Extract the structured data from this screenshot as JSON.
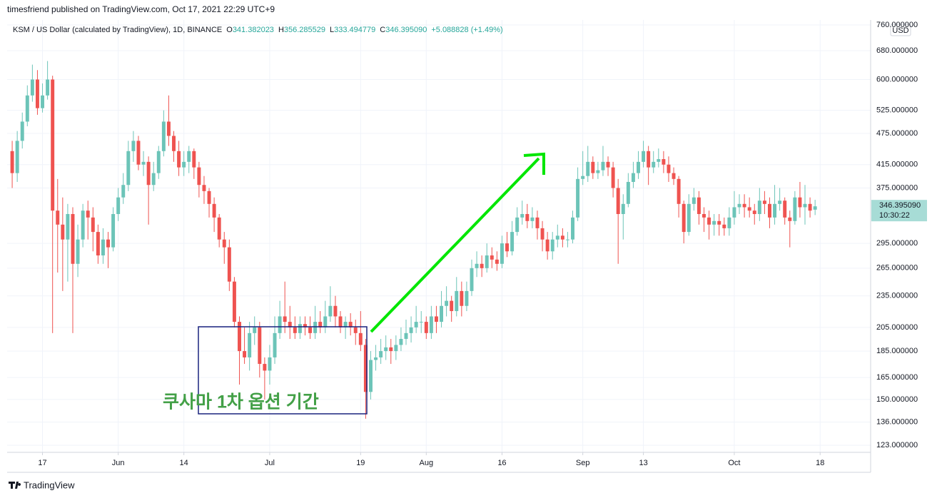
{
  "chart_data": {
    "type": "candlestick",
    "publisher": "timesfriend published on TradingView.com, Oct 17, 2021 22:29 UTC+9",
    "title": "KSM / US Dollar (calculated by TradingView), 1D, BINANCE",
    "legend": {
      "o_label": "O",
      "o_value": "341.382023",
      "h_label": "H",
      "h_value": "356.285529",
      "l_label": "L",
      "l_value": "333.494779",
      "c_label": "C",
      "c_value": "346.395090",
      "change": "+5.088828 (+1.49%)"
    },
    "currency": "USD",
    "last_price_label": "346.395090",
    "countdown": "10:30:22",
    "annotation": "쿠사마 1차 옵션 기간",
    "brand": "TradingView",
    "up_color": "#6cc4b8",
    "down_color": "#ef5350",
    "log_scale": true,
    "grid": true,
    "ylim": [
      119.3,
      776.6
    ],
    "yticks": [
      {
        "value": 123,
        "label": "123.000000"
      },
      {
        "value": 136,
        "label": "136.000000"
      },
      {
        "value": 150,
        "label": "150.000000"
      },
      {
        "value": 165,
        "label": "165.000000"
      },
      {
        "value": 185,
        "label": "185.000000"
      },
      {
        "value": 205,
        "label": "205.000000"
      },
      {
        "value": 235,
        "label": "235.000000"
      },
      {
        "value": 265,
        "label": "265.000000"
      },
      {
        "value": 295,
        "label": "295.000000"
      },
      {
        "value": 375,
        "label": "375.000000"
      },
      {
        "value": 415,
        "label": "415.000000"
      },
      {
        "value": 475,
        "label": "475.000000"
      },
      {
        "value": 525,
        "label": "525.000000"
      },
      {
        "value": 600,
        "label": "600.000000"
      },
      {
        "value": 680,
        "label": "680.000000"
      },
      {
        "value": 760,
        "label": "760.000000"
      }
    ],
    "xlim": [
      "2021-05-10",
      "2021-10-28"
    ],
    "xticks": [
      {
        "value": "2021-05-17",
        "label": "17"
      },
      {
        "value": "2021-06-01",
        "label": "Jun"
      },
      {
        "value": "2021-06-14",
        "label": "14"
      },
      {
        "value": "2021-07-01",
        "label": "Jul"
      },
      {
        "value": "2021-07-19",
        "label": "19"
      },
      {
        "value": "2021-08-01",
        "label": "Aug"
      },
      {
        "value": "2021-08-16",
        "label": "16"
      },
      {
        "value": "2021-09-01",
        "label": "Sep"
      },
      {
        "value": "2021-09-13",
        "label": "13"
      },
      {
        "value": "2021-10-01",
        "label": "Oct"
      },
      {
        "value": "2021-10-18",
        "label": "18"
      }
    ],
    "x": [
      "2021-05-11",
      "2021-05-12",
      "2021-05-13",
      "2021-05-14",
      "2021-05-15",
      "2021-05-16",
      "2021-05-17",
      "2021-05-18",
      "2021-05-19",
      "2021-05-20",
      "2021-05-21",
      "2021-05-22",
      "2021-05-23",
      "2021-05-24",
      "2021-05-25",
      "2021-05-26",
      "2021-05-27",
      "2021-05-28",
      "2021-05-29",
      "2021-05-30",
      "2021-05-31",
      "2021-06-01",
      "2021-06-02",
      "2021-06-03",
      "2021-06-04",
      "2021-06-05",
      "2021-06-06",
      "2021-06-07",
      "2021-06-08",
      "2021-06-09",
      "2021-06-10",
      "2021-06-11",
      "2021-06-12",
      "2021-06-13",
      "2021-06-14",
      "2021-06-15",
      "2021-06-16",
      "2021-06-17",
      "2021-06-18",
      "2021-06-19",
      "2021-06-20",
      "2021-06-21",
      "2021-06-22",
      "2021-06-23",
      "2021-06-24",
      "2021-06-25",
      "2021-06-26",
      "2021-06-27",
      "2021-06-28",
      "2021-06-29",
      "2021-06-30",
      "2021-07-01",
      "2021-07-02",
      "2021-07-03",
      "2021-07-04",
      "2021-07-05",
      "2021-07-06",
      "2021-07-07",
      "2021-07-08",
      "2021-07-09",
      "2021-07-10",
      "2021-07-11",
      "2021-07-12",
      "2021-07-13",
      "2021-07-14",
      "2021-07-15",
      "2021-07-16",
      "2021-07-17",
      "2021-07-18",
      "2021-07-19",
      "2021-07-20",
      "2021-07-21",
      "2021-07-22",
      "2021-07-23",
      "2021-07-24",
      "2021-07-25",
      "2021-07-26",
      "2021-07-27",
      "2021-07-28",
      "2021-07-29",
      "2021-07-30",
      "2021-07-31",
      "2021-08-01",
      "2021-08-02",
      "2021-08-03",
      "2021-08-04",
      "2021-08-05",
      "2021-08-06",
      "2021-08-07",
      "2021-08-08",
      "2021-08-09",
      "2021-08-10",
      "2021-08-11",
      "2021-08-12",
      "2021-08-13",
      "2021-08-14",
      "2021-08-15",
      "2021-08-16",
      "2021-08-17",
      "2021-08-18",
      "2021-08-19",
      "2021-08-20",
      "2021-08-21",
      "2021-08-22",
      "2021-08-23",
      "2021-08-24",
      "2021-08-25",
      "2021-08-26",
      "2021-08-27",
      "2021-08-28",
      "2021-08-29",
      "2021-08-30",
      "2021-08-31",
      "2021-09-01",
      "2021-09-02",
      "2021-09-03",
      "2021-09-04",
      "2021-09-05",
      "2021-09-06",
      "2021-09-07",
      "2021-09-08",
      "2021-09-09",
      "2021-09-10",
      "2021-09-11",
      "2021-09-12",
      "2021-09-13",
      "2021-09-14",
      "2021-09-15",
      "2021-09-16",
      "2021-09-17",
      "2021-09-18",
      "2021-09-19",
      "2021-09-20",
      "2021-09-21",
      "2021-09-22",
      "2021-09-23",
      "2021-09-24",
      "2021-09-25",
      "2021-09-26",
      "2021-09-27",
      "2021-09-28",
      "2021-09-29",
      "2021-09-30",
      "2021-10-01",
      "2021-10-02",
      "2021-10-03",
      "2021-10-04",
      "2021-10-05",
      "2021-10-06",
      "2021-10-07",
      "2021-10-08",
      "2021-10-09",
      "2021-10-10",
      "2021-10-11",
      "2021-10-12",
      "2021-10-13",
      "2021-10-14",
      "2021-10-15",
      "2021-10-16",
      "2021-10-17"
    ],
    "open": [
      440,
      400,
      460,
      500,
      560,
      600,
      530,
      560,
      600,
      340,
      320,
      300,
      335,
      270,
      300,
      340,
      330,
      310,
      280,
      300,
      290,
      335,
      360,
      380,
      440,
      460,
      415,
      420,
      380,
      400,
      440,
      500,
      470,
      440,
      410,
      420,
      440,
      410,
      380,
      370,
      350,
      330,
      300,
      290,
      250,
      210,
      185,
      180,
      200,
      205,
      175,
      170,
      180,
      200,
      215,
      210,
      205,
      200,
      208,
      205,
      200,
      210,
      205,
      215,
      225,
      215,
      205,
      210,
      205,
      200,
      190,
      155,
      178,
      180,
      185,
      188,
      185,
      190,
      195,
      200,
      205,
      210,
      210,
      200,
      215,
      210,
      225,
      230,
      220,
      240,
      225,
      240,
      265,
      270,
      265,
      280,
      275,
      270,
      295,
      285,
      310,
      330,
      335,
      325,
      330,
      315,
      300,
      285,
      300,
      305,
      300,
      300,
      330,
      390,
      395,
      420,
      400,
      405,
      420,
      410,
      375,
      335,
      350,
      385,
      400,
      420,
      440,
      410,
      420,
      425,
      415,
      400,
      390,
      350,
      310,
      350,
      360,
      335,
      330,
      320,
      325,
      320,
      315,
      330,
      345,
      350,
      345,
      340,
      335,
      355,
      350,
      330,
      350,
      355,
      330,
      325,
      360,
      345,
      350,
      341.382023
    ],
    "high": [
      460,
      480,
      520,
      585,
      640,
      625,
      590,
      650,
      610,
      390,
      360,
      350,
      345,
      320,
      350,
      355,
      345,
      320,
      315,
      310,
      345,
      375,
      400,
      460,
      480,
      470,
      440,
      430,
      420,
      450,
      525,
      560,
      480,
      460,
      440,
      450,
      445,
      420,
      395,
      375,
      360,
      335,
      310,
      300,
      255,
      215,
      205,
      210,
      215,
      210,
      180,
      190,
      215,
      230,
      250,
      225,
      215,
      215,
      215,
      215,
      225,
      220,
      230,
      245,
      235,
      220,
      215,
      218,
      212,
      220,
      195,
      185,
      190,
      195,
      198,
      195,
      198,
      205,
      212,
      215,
      225,
      220,
      215,
      225,
      225,
      240,
      245,
      235,
      255,
      250,
      250,
      275,
      285,
      280,
      295,
      290,
      285,
      305,
      310,
      325,
      345,
      355,
      350,
      345,
      340,
      325,
      310,
      310,
      320,
      315,
      310,
      340,
      410,
      440,
      450,
      430,
      420,
      450,
      430,
      420,
      390,
      365,
      400,
      420,
      440,
      460,
      450,
      440,
      445,
      440,
      430,
      410,
      395,
      355,
      365,
      375,
      370,
      345,
      340,
      335,
      335,
      330,
      345,
      370,
      365,
      365,
      360,
      350,
      375,
      370,
      360,
      380,
      375,
      360,
      340,
      370,
      385,
      380,
      360,
      356.285529
    ],
    "low": [
      375,
      385,
      445,
      490,
      545,
      515,
      520,
      550,
      200,
      260,
      240,
      250,
      200,
      255,
      290,
      300,
      285,
      270,
      270,
      265,
      285,
      325,
      350,
      370,
      420,
      405,
      395,
      320,
      370,
      390,
      430,
      450,
      420,
      395,
      395,
      400,
      390,
      360,
      350,
      330,
      310,
      290,
      270,
      240,
      205,
      160,
      175,
      170,
      190,
      165,
      150,
      160,
      175,
      195,
      200,
      195,
      195,
      195,
      198,
      195,
      195,
      200,
      200,
      210,
      205,
      200,
      195,
      198,
      190,
      185,
      138,
      150,
      170,
      175,
      178,
      175,
      178,
      185,
      190,
      192,
      200,
      200,
      195,
      195,
      200,
      205,
      215,
      210,
      215,
      215,
      220,
      235,
      255,
      255,
      260,
      265,
      262,
      265,
      278,
      280,
      305,
      320,
      315,
      315,
      300,
      285,
      275,
      275,
      290,
      290,
      290,
      295,
      325,
      380,
      385,
      390,
      390,
      395,
      395,
      360,
      270,
      300,
      345,
      375,
      390,
      410,
      380,
      400,
      410,
      400,
      385,
      380,
      330,
      295,
      305,
      340,
      320,
      310,
      300,
      305,
      305,
      305,
      305,
      320,
      335,
      330,
      330,
      320,
      325,
      335,
      315,
      320,
      340,
      320,
      290,
      320,
      330,
      320,
      330,
      333.494779
    ],
    "close": [
      400,
      460,
      500,
      560,
      600,
      530,
      560,
      600,
      340,
      320,
      300,
      335,
      270,
      300,
      340,
      330,
      310,
      280,
      300,
      290,
      335,
      360,
      380,
      440,
      460,
      415,
      420,
      380,
      400,
      440,
      500,
      470,
      440,
      410,
      420,
      440,
      410,
      380,
      370,
      350,
      330,
      300,
      290,
      250,
      210,
      185,
      180,
      200,
      205,
      175,
      170,
      180,
      200,
      215,
      210,
      205,
      200,
      208,
      205,
      200,
      210,
      205,
      215,
      225,
      215,
      205,
      210,
      205,
      200,
      190,
      155,
      178,
      180,
      185,
      188,
      185,
      190,
      195,
      200,
      205,
      210,
      210,
      200,
      215,
      210,
      225,
      230,
      220,
      240,
      225,
      240,
      265,
      270,
      265,
      280,
      275,
      270,
      295,
      285,
      310,
      330,
      335,
      325,
      330,
      315,
      300,
      285,
      300,
      305,
      300,
      300,
      330,
      390,
      395,
      420,
      400,
      405,
      420,
      410,
      375,
      335,
      350,
      385,
      400,
      420,
      440,
      410,
      420,
      425,
      415,
      400,
      390,
      350,
      310,
      350,
      360,
      335,
      330,
      320,
      325,
      320,
      315,
      330,
      345,
      350,
      345,
      340,
      335,
      355,
      350,
      330,
      350,
      355,
      330,
      325,
      360,
      345,
      350,
      340,
      346.39509
    ]
  }
}
